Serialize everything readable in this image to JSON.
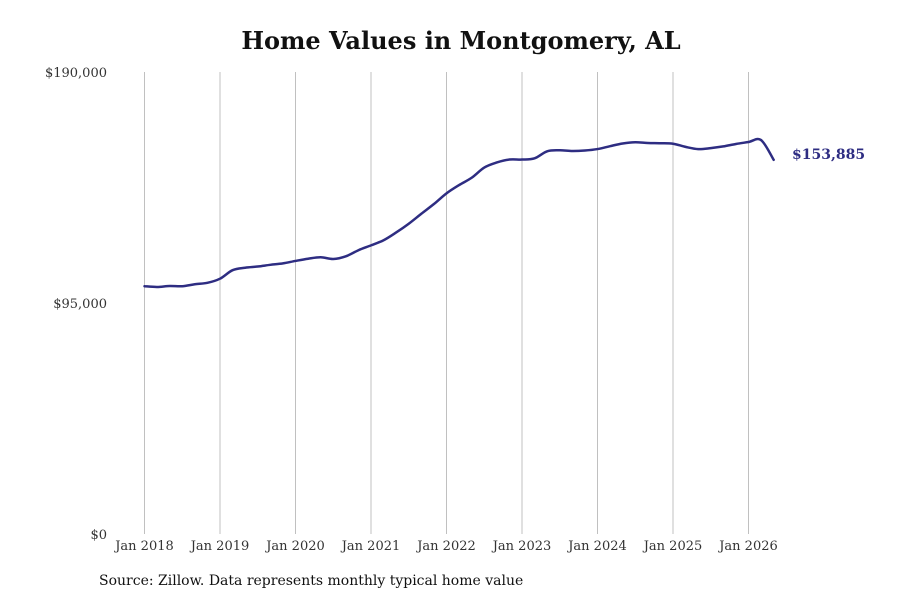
{
  "chart": {
    "title": "Home Values in Montgomery, AL",
    "source": "Source: Zillow. Data represents monthly typical home value",
    "end_label": "$153,885"
  },
  "colors": {
    "line": "#2e2d82",
    "grid": "#c0c0c0",
    "text": "#333333"
  },
  "chart_data": {
    "type": "line",
    "title": "Home Values in Montgomery, AL",
    "xlabel": "",
    "ylabel": "",
    "ylim": [
      0,
      190000
    ],
    "xlim": [
      "2018-01",
      "2026-06"
    ],
    "grid": "vertical",
    "legend": "none",
    "y_ticks": [
      {
        "value": 0,
        "label": "$0"
      },
      {
        "value": 95000,
        "label": "$95,000"
      },
      {
        "value": 190000,
        "label": "$190,000"
      }
    ],
    "x_ticks": [
      {
        "date": "2018-01",
        "label": "Jan 2018"
      },
      {
        "date": "2019-01",
        "label": "Jan 2019"
      },
      {
        "date": "2020-01",
        "label": "Jan 2020"
      },
      {
        "date": "2021-01",
        "label": "Jan 2021"
      },
      {
        "date": "2022-01",
        "label": "Jan 2022"
      },
      {
        "date": "2023-01",
        "label": "Jan 2023"
      },
      {
        "date": "2024-01",
        "label": "Jan 2024"
      },
      {
        "date": "2025-01",
        "label": "Jan 2025"
      },
      {
        "date": "2026-01",
        "label": "Jan 2026"
      }
    ],
    "series": [
      {
        "points": [
          [
            "2018-01",
            101900
          ],
          [
            "2018-03",
            101600
          ],
          [
            "2018-05",
            102000
          ],
          [
            "2018-07",
            101900
          ],
          [
            "2018-09",
            102700
          ],
          [
            "2018-11",
            103300
          ],
          [
            "2019-01",
            105000
          ],
          [
            "2019-03",
            108500
          ],
          [
            "2019-05",
            109500
          ],
          [
            "2019-07",
            110000
          ],
          [
            "2019-09",
            110700
          ],
          [
            "2019-11",
            111300
          ],
          [
            "2020-01",
            112300
          ],
          [
            "2020-03",
            113200
          ],
          [
            "2020-05",
            113800
          ],
          [
            "2020-07",
            113100
          ],
          [
            "2020-09",
            114200
          ],
          [
            "2020-11",
            116700
          ],
          [
            "2021-01",
            118700
          ],
          [
            "2021-03",
            120800
          ],
          [
            "2021-05",
            124000
          ],
          [
            "2021-07",
            127600
          ],
          [
            "2021-09",
            131700
          ],
          [
            "2021-11",
            135700
          ],
          [
            "2022-01",
            140100
          ],
          [
            "2022-03",
            143500
          ],
          [
            "2022-05",
            146500
          ],
          [
            "2022-07",
            150700
          ],
          [
            "2022-09",
            152800
          ],
          [
            "2022-11",
            154000
          ],
          [
            "2023-01",
            154000
          ],
          [
            "2023-03",
            154500
          ],
          [
            "2023-05",
            157400
          ],
          [
            "2023-07",
            157800
          ],
          [
            "2023-09",
            157500
          ],
          [
            "2023-11",
            157700
          ],
          [
            "2024-01",
            158300
          ],
          [
            "2024-03",
            159500
          ],
          [
            "2024-05",
            160600
          ],
          [
            "2024-07",
            161100
          ],
          [
            "2024-09",
            160800
          ],
          [
            "2024-11",
            160700
          ],
          [
            "2025-01",
            160500
          ],
          [
            "2025-03",
            159200
          ],
          [
            "2025-05",
            158300
          ],
          [
            "2025-07",
            158700
          ],
          [
            "2025-09",
            159400
          ],
          [
            "2025-11",
            160400
          ],
          [
            "2026-01",
            161200
          ],
          [
            "2026-03",
            162000
          ],
          [
            "2026-05",
            153885
          ]
        ]
      }
    ]
  }
}
